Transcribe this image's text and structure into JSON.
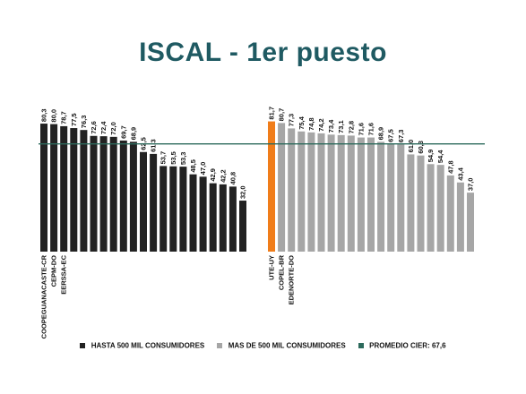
{
  "chart_data": {
    "type": "bar",
    "title": "ISCAL - 1er puesto",
    "avg_line": 67.6,
    "series": [
      {
        "name": "HASTA 500 MIL CONSUMIDORES",
        "color": "#222222",
        "values": [
          80.3,
          80.0,
          78.7,
          77.5,
          76.3,
          72.6,
          72.4,
          72.0,
          69.7,
          68.9,
          62.5,
          61.3,
          53.7,
          53.5,
          53.3,
          48.5,
          47.0,
          42.9,
          42.2,
          40.8,
          32.0
        ],
        "labels": [
          "80,3",
          "80,0",
          "78,7",
          "77,5",
          "76,3",
          "72,6",
          "72,4",
          "72,0",
          "69,7",
          "68,9",
          "62,5",
          "61,3",
          "53,7",
          "53,5",
          "53,3",
          "48,5",
          "47,0",
          "42,9",
          "42,2",
          "40,8",
          "32,0"
        ],
        "categories": [
          "COOPEGUANACASTE-CR",
          "CEPM-DO",
          "EERSSA-EC",
          "",
          "",
          "",
          "",
          "",
          "",
          "",
          "",
          "",
          "",
          "",
          "",
          "",
          "",
          "",
          "",
          "",
          ""
        ]
      },
      {
        "name": "MAS DE 500 MIL CONSUMIDORES",
        "color": "#a6a6a6",
        "highlight_color": "#f07d1a",
        "highlight_index": 0,
        "values": [
          81.7,
          80.7,
          77.3,
          75.4,
          74.8,
          74.2,
          73.4,
          73.1,
          72.8,
          71.6,
          71.6,
          68.9,
          67.5,
          67.3,
          61.0,
          60.3,
          54.9,
          54.4,
          47.8,
          43.4,
          37.0
        ],
        "labels": [
          "81,7",
          "80,7",
          "77,3",
          "75,4",
          "74,8",
          "74,2",
          "73,4",
          "73,1",
          "72,8",
          "71,6",
          "71,6",
          "68,9",
          "67,5",
          "67,3",
          "61,0",
          "60,3",
          "54,9",
          "54,4",
          "47,8",
          "43,4",
          "37,0"
        ],
        "categories": [
          "UTE-UY",
          "COPEL-BR",
          "EDENORTE-DO",
          "",
          "",
          "",
          "",
          "",
          "",
          "",
          "",
          "",
          "",
          "",
          "",
          "",
          "",
          "",
          "",
          "",
          ""
        ]
      }
    ],
    "legend": [
      {
        "label": "HASTA 500 MIL CONSUMIDORES",
        "color": "#222222"
      },
      {
        "label": "MAS DE 500 MIL CONSUMIDORES",
        "color": "#a6a6a6"
      },
      {
        "label": "PROMEDIO CIER: 67,6",
        "color": "#2c6a5c"
      }
    ],
    "legend_position": "bottom",
    "avg_line_color": "#2c6a5c",
    "grid": false
  }
}
